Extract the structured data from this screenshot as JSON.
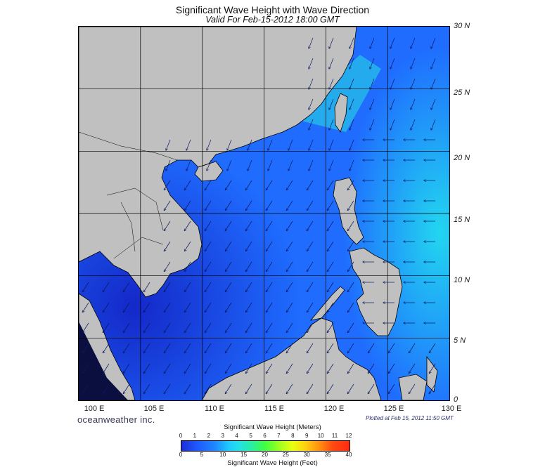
{
  "title": "Significant Wave Height with Wave Direction",
  "subtitle": "Valid For Feb-15-2012 18:00 GMT",
  "brand": "oceanweather inc.",
  "plotted": "Plotted at Feb 15, 2012 11:50 GMT",
  "lat_labels": [
    "30 N",
    "25 N",
    "20 N",
    "15 N",
    "10 N",
    "5 N",
    "0"
  ],
  "lon_labels": [
    "100 E",
    "105 E",
    "110 E",
    "115 E",
    "120 E",
    "125 E",
    "130 E"
  ],
  "legend": {
    "title_meters": "Significant Wave Height (Meters)",
    "title_feet": "Significant Wave Height (Feet)",
    "meter_ticks": [
      "0",
      "1",
      "2",
      "3",
      "4",
      "5",
      "6",
      "7",
      "8",
      "9",
      "10",
      "11",
      "12"
    ],
    "feet_ticks": [
      "0",
      "5",
      "10",
      "15",
      "20",
      "25",
      "30",
      "35",
      "40"
    ]
  },
  "colors": {
    "land": "#c0c0c0",
    "sea_low": "#1a2fd6",
    "sea_mid": "#1f78ff",
    "sea_high": "#22d6f0"
  },
  "map_extent": {
    "lon_min": 100,
    "lon_max": 130,
    "lat_min": 0,
    "lat_max": 30
  }
}
